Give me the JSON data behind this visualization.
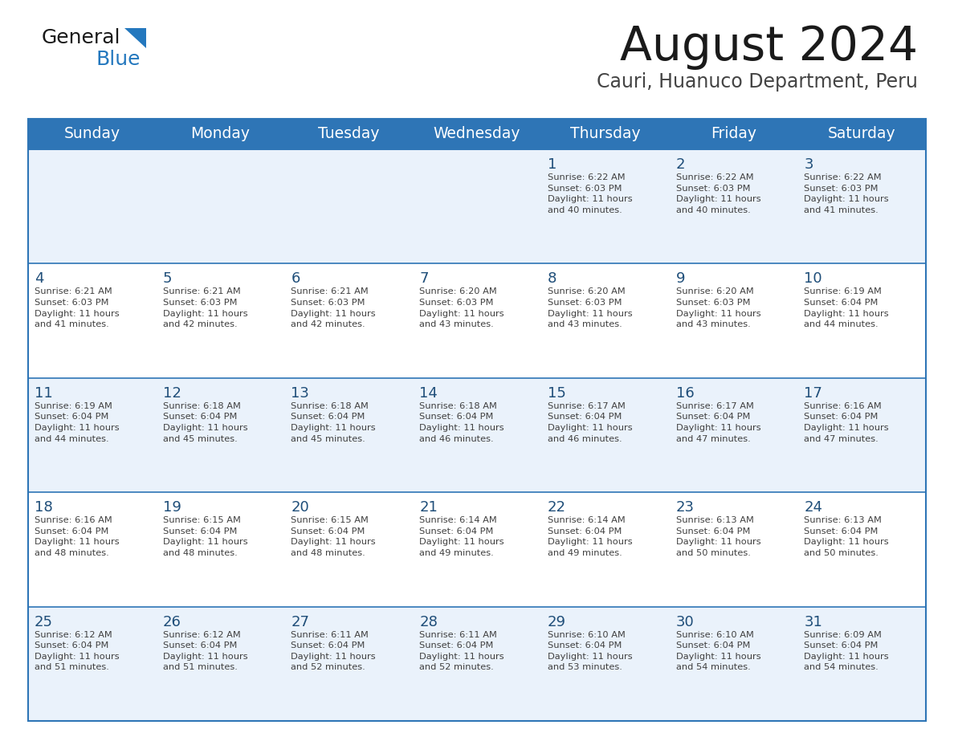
{
  "title": "August 2024",
  "subtitle": "Cauri, Huanuco Department, Peru",
  "header_bg": "#2E75B6",
  "header_text_color": "#FFFFFF",
  "day_names": [
    "Sunday",
    "Monday",
    "Tuesday",
    "Wednesday",
    "Thursday",
    "Friday",
    "Saturday"
  ],
  "row0_bg": "#EAF2FB",
  "row1_bg": "#FFFFFF",
  "grid_color": "#2E75B6",
  "day_num_color": "#1F4E79",
  "cell_text_color": "#404040",
  "logo_general_color": "#222222",
  "logo_blue_color": "#2478BE",
  "calendar": [
    [
      {
        "day": "",
        "info": ""
      },
      {
        "day": "",
        "info": ""
      },
      {
        "day": "",
        "info": ""
      },
      {
        "day": "",
        "info": ""
      },
      {
        "day": "1",
        "info": "Sunrise: 6:22 AM\nSunset: 6:03 PM\nDaylight: 11 hours\nand 40 minutes."
      },
      {
        "day": "2",
        "info": "Sunrise: 6:22 AM\nSunset: 6:03 PM\nDaylight: 11 hours\nand 40 minutes."
      },
      {
        "day": "3",
        "info": "Sunrise: 6:22 AM\nSunset: 6:03 PM\nDaylight: 11 hours\nand 41 minutes."
      }
    ],
    [
      {
        "day": "4",
        "info": "Sunrise: 6:21 AM\nSunset: 6:03 PM\nDaylight: 11 hours\nand 41 minutes."
      },
      {
        "day": "5",
        "info": "Sunrise: 6:21 AM\nSunset: 6:03 PM\nDaylight: 11 hours\nand 42 minutes."
      },
      {
        "day": "6",
        "info": "Sunrise: 6:21 AM\nSunset: 6:03 PM\nDaylight: 11 hours\nand 42 minutes."
      },
      {
        "day": "7",
        "info": "Sunrise: 6:20 AM\nSunset: 6:03 PM\nDaylight: 11 hours\nand 43 minutes."
      },
      {
        "day": "8",
        "info": "Sunrise: 6:20 AM\nSunset: 6:03 PM\nDaylight: 11 hours\nand 43 minutes."
      },
      {
        "day": "9",
        "info": "Sunrise: 6:20 AM\nSunset: 6:03 PM\nDaylight: 11 hours\nand 43 minutes."
      },
      {
        "day": "10",
        "info": "Sunrise: 6:19 AM\nSunset: 6:04 PM\nDaylight: 11 hours\nand 44 minutes."
      }
    ],
    [
      {
        "day": "11",
        "info": "Sunrise: 6:19 AM\nSunset: 6:04 PM\nDaylight: 11 hours\nand 44 minutes."
      },
      {
        "day": "12",
        "info": "Sunrise: 6:18 AM\nSunset: 6:04 PM\nDaylight: 11 hours\nand 45 minutes."
      },
      {
        "day": "13",
        "info": "Sunrise: 6:18 AM\nSunset: 6:04 PM\nDaylight: 11 hours\nand 45 minutes."
      },
      {
        "day": "14",
        "info": "Sunrise: 6:18 AM\nSunset: 6:04 PM\nDaylight: 11 hours\nand 46 minutes."
      },
      {
        "day": "15",
        "info": "Sunrise: 6:17 AM\nSunset: 6:04 PM\nDaylight: 11 hours\nand 46 minutes."
      },
      {
        "day": "16",
        "info": "Sunrise: 6:17 AM\nSunset: 6:04 PM\nDaylight: 11 hours\nand 47 minutes."
      },
      {
        "day": "17",
        "info": "Sunrise: 6:16 AM\nSunset: 6:04 PM\nDaylight: 11 hours\nand 47 minutes."
      }
    ],
    [
      {
        "day": "18",
        "info": "Sunrise: 6:16 AM\nSunset: 6:04 PM\nDaylight: 11 hours\nand 48 minutes."
      },
      {
        "day": "19",
        "info": "Sunrise: 6:15 AM\nSunset: 6:04 PM\nDaylight: 11 hours\nand 48 minutes."
      },
      {
        "day": "20",
        "info": "Sunrise: 6:15 AM\nSunset: 6:04 PM\nDaylight: 11 hours\nand 48 minutes."
      },
      {
        "day": "21",
        "info": "Sunrise: 6:14 AM\nSunset: 6:04 PM\nDaylight: 11 hours\nand 49 minutes."
      },
      {
        "day": "22",
        "info": "Sunrise: 6:14 AM\nSunset: 6:04 PM\nDaylight: 11 hours\nand 49 minutes."
      },
      {
        "day": "23",
        "info": "Sunrise: 6:13 AM\nSunset: 6:04 PM\nDaylight: 11 hours\nand 50 minutes."
      },
      {
        "day": "24",
        "info": "Sunrise: 6:13 AM\nSunset: 6:04 PM\nDaylight: 11 hours\nand 50 minutes."
      }
    ],
    [
      {
        "day": "25",
        "info": "Sunrise: 6:12 AM\nSunset: 6:04 PM\nDaylight: 11 hours\nand 51 minutes."
      },
      {
        "day": "26",
        "info": "Sunrise: 6:12 AM\nSunset: 6:04 PM\nDaylight: 11 hours\nand 51 minutes."
      },
      {
        "day": "27",
        "info": "Sunrise: 6:11 AM\nSunset: 6:04 PM\nDaylight: 11 hours\nand 52 minutes."
      },
      {
        "day": "28",
        "info": "Sunrise: 6:11 AM\nSunset: 6:04 PM\nDaylight: 11 hours\nand 52 minutes."
      },
      {
        "day": "29",
        "info": "Sunrise: 6:10 AM\nSunset: 6:04 PM\nDaylight: 11 hours\nand 53 minutes."
      },
      {
        "day": "30",
        "info": "Sunrise: 6:10 AM\nSunset: 6:04 PM\nDaylight: 11 hours\nand 54 minutes."
      },
      {
        "day": "31",
        "info": "Sunrise: 6:09 AM\nSunset: 6:04 PM\nDaylight: 11 hours\nand 54 minutes."
      }
    ]
  ]
}
